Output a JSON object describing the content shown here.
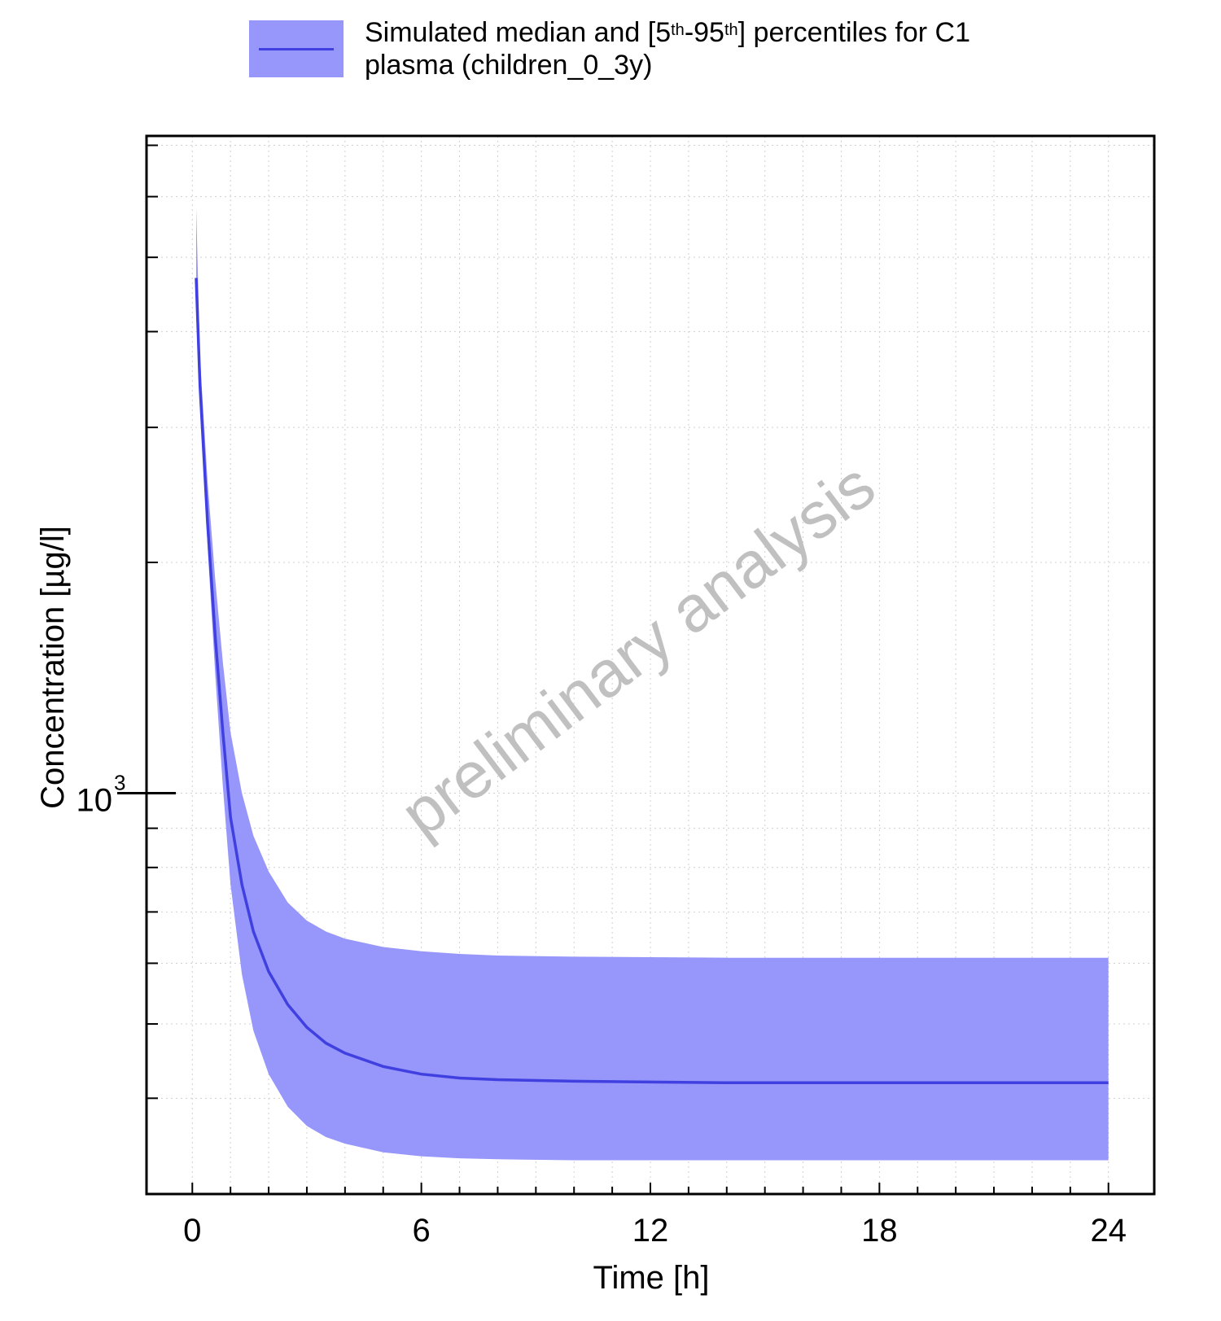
{
  "legend": {
    "line1_prefix": "Simulated median and [5",
    "sup1": "th",
    "mid": "-95",
    "sup2": "th",
    "line1_suffix": "] percentiles for C1",
    "line2": "plasma (children_0_3y)"
  },
  "watermark": "preliminary analysis",
  "colors": {
    "band": "#9696fb",
    "median": "#4040e0",
    "watermark": "#c0c0c0",
    "grid": "#c8c8c8"
  },
  "chart_data": {
    "type": "area",
    "xlabel": "Time [h]",
    "ylabel": "Concentration [µg/l]",
    "xlim": [
      -1.2,
      25.2
    ],
    "ylim": [
      300,
      7200
    ],
    "yscale": "log",
    "x_ticks": [
      0,
      6,
      12,
      18,
      24
    ],
    "y_tick_label": {
      "base": "10",
      "exponent": "3",
      "value": 1000
    },
    "grid": true,
    "legend_position": "top",
    "series": [
      {
        "name": "Simulated median and [5th-95th] percentiles for C1 plasma (children_0_3y)",
        "x": [
          0.1,
          0.2,
          0.4,
          0.6,
          0.8,
          1.0,
          1.3,
          1.6,
          2.0,
          2.5,
          3.0,
          3.5,
          4.0,
          5.0,
          6.0,
          7.0,
          8.0,
          10.0,
          12.0,
          14.0,
          16.0,
          18.0,
          20.0,
          22.0,
          24.0
        ],
        "median": [
          4700,
          3400,
          2250,
          1600,
          1200,
          930,
          760,
          660,
          585,
          530,
          495,
          472,
          458,
          440,
          430,
          425,
          423,
          421,
          420,
          419,
          419,
          419,
          419,
          419,
          419
        ],
        "p5": [
          4700,
          3300,
          2100,
          1430,
          1020,
          760,
          580,
          490,
          430,
          390,
          368,
          356,
          349,
          340,
          336,
          334,
          333,
          332,
          332,
          332,
          332,
          332,
          332,
          332,
          332
        ],
        "p95": [
          5800,
          3700,
          2550,
          1900,
          1480,
          1200,
          1000,
          880,
          790,
          720,
          682,
          660,
          646,
          630,
          622,
          617,
          614,
          612,
          611,
          610,
          610,
          610,
          610,
          610,
          610
        ]
      }
    ]
  }
}
